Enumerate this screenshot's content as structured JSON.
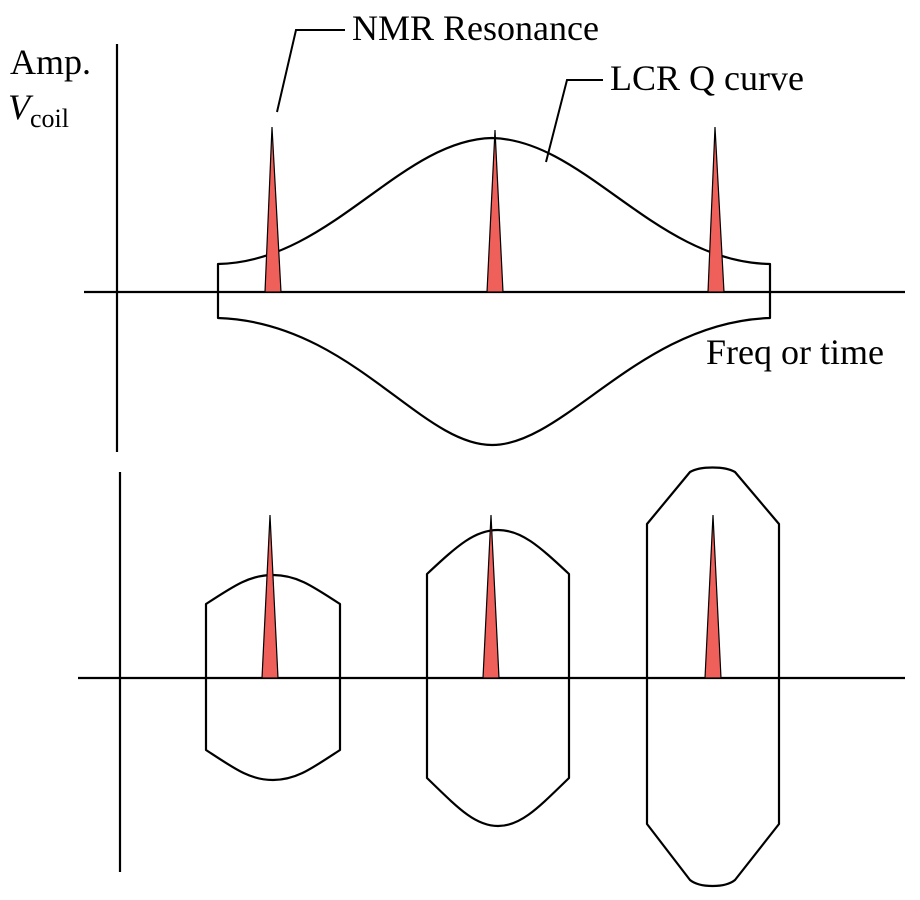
{
  "labels": {
    "nmr_resonance": "NMR Resonance",
    "lcr_q_curve": "LCR Q curve",
    "amp": "Amp.",
    "v_italic": "V",
    "v_subscript": "coil",
    "x_axis": "Freq or time"
  },
  "colors": {
    "peak_fill": "#f0605a",
    "line": "#000000"
  }
}
